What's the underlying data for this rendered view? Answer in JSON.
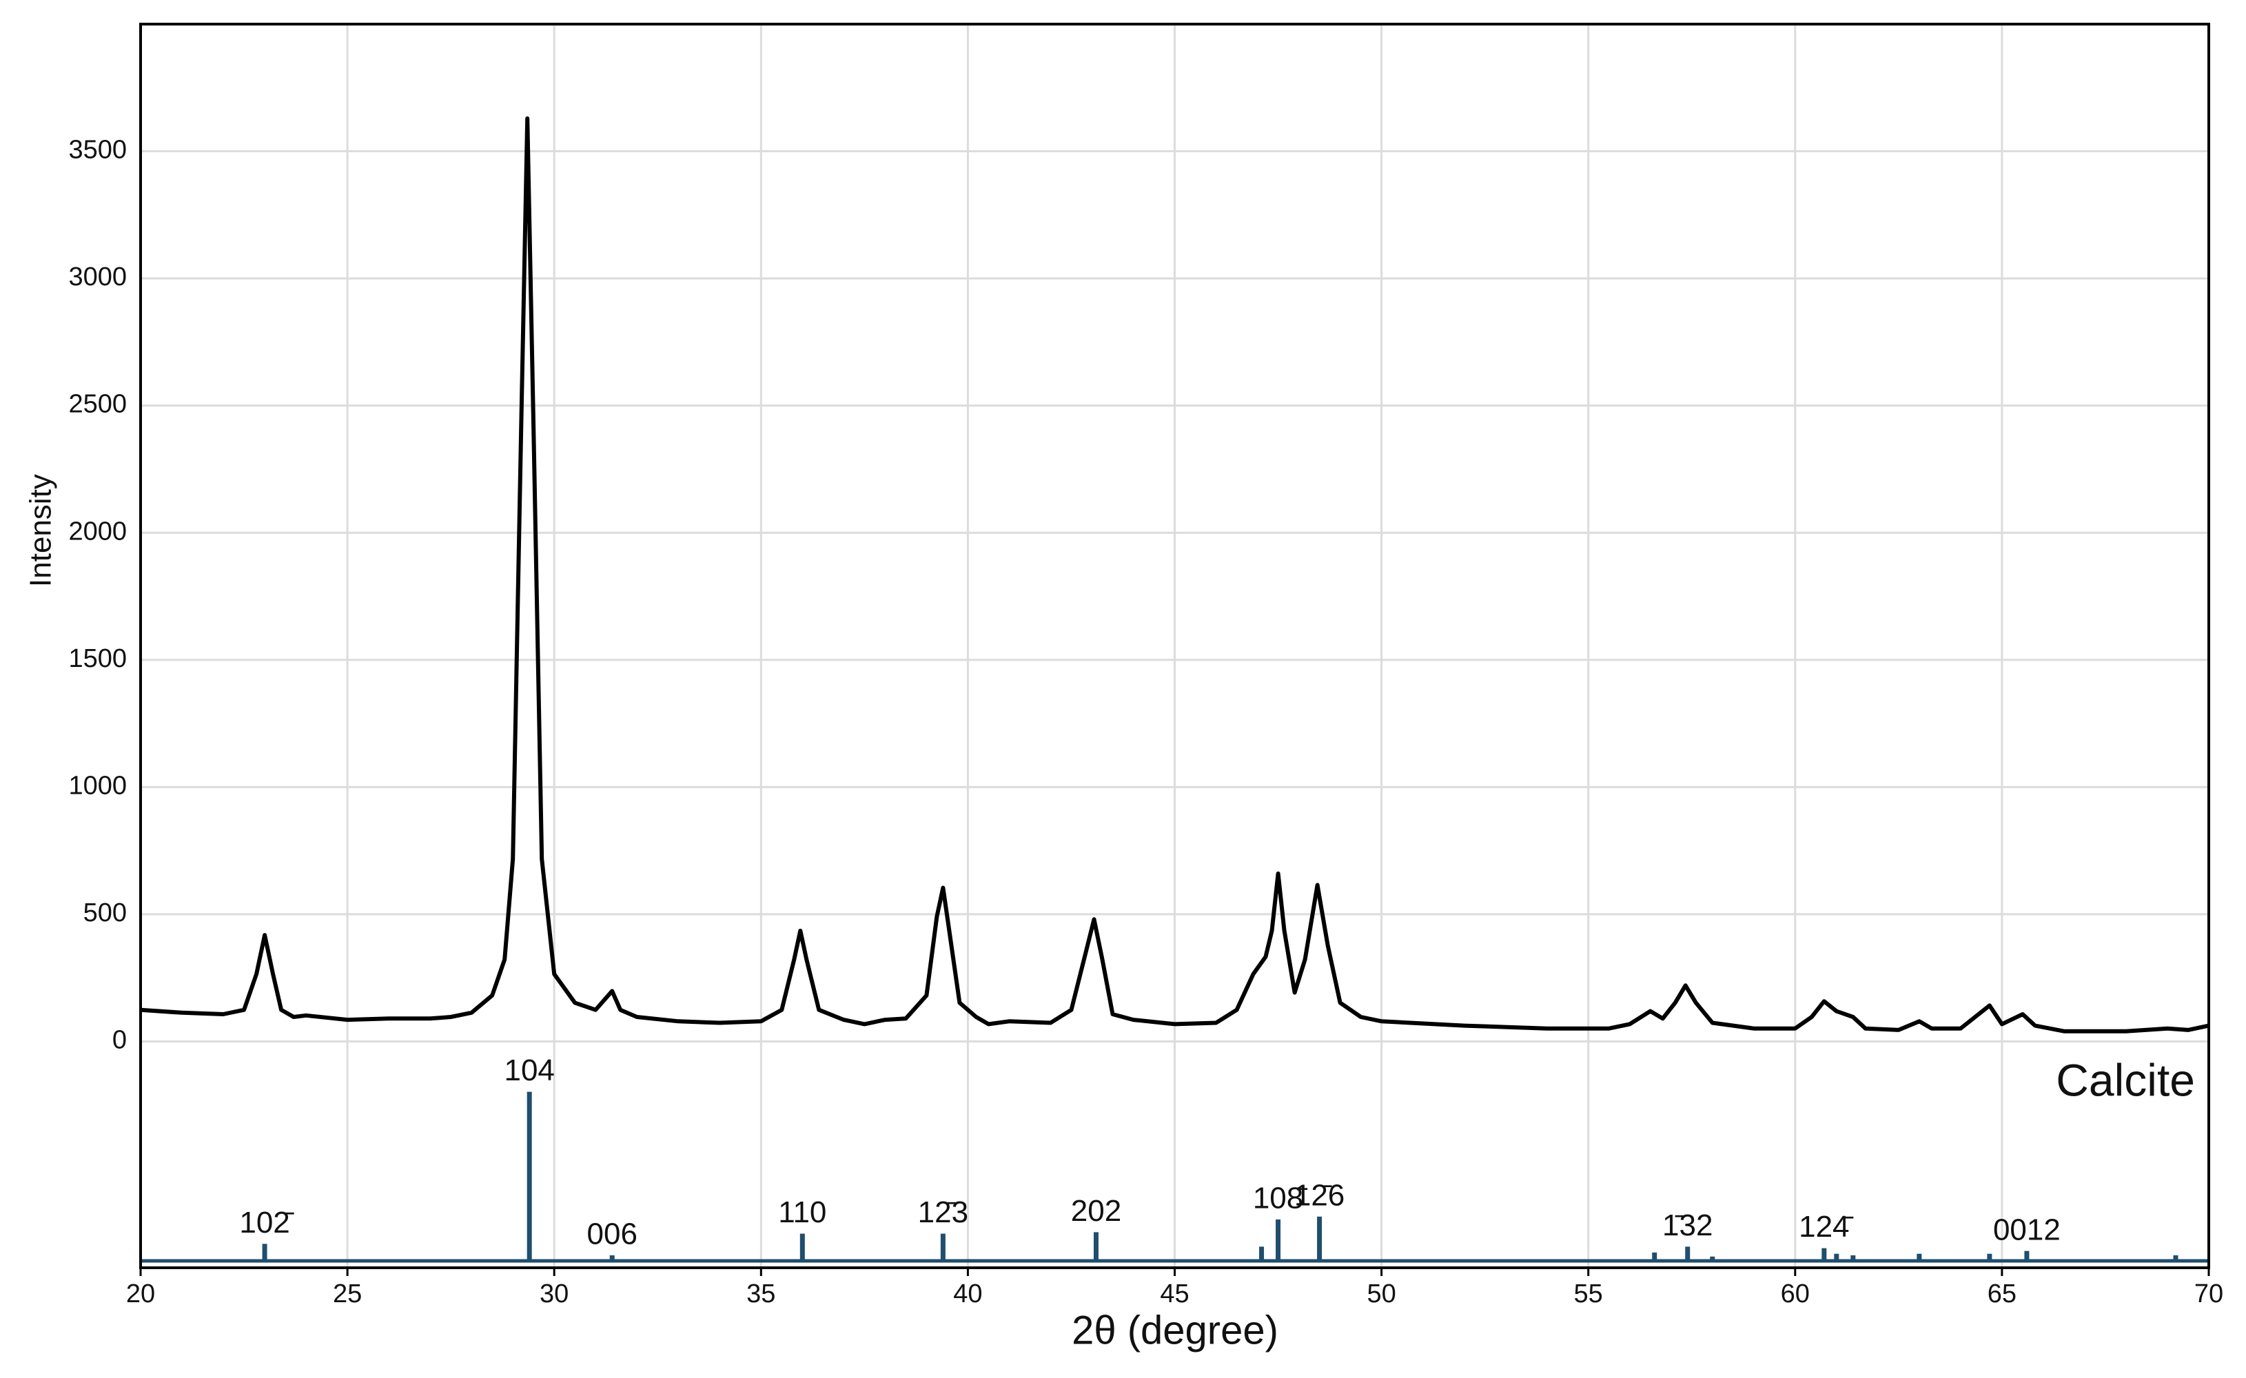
{
  "chart_data": {
    "type": "line",
    "xlabel": "2θ (degree)",
    "ylabel": "Intensity",
    "x": [
      20,
      21,
      22,
      22.5,
      22.8,
      23.0,
      23.2,
      23.4,
      23.7,
      24,
      25,
      26,
      27,
      27.5,
      28,
      28.5,
      28.8,
      29.0,
      29.2,
      29.35,
      29.5,
      29.7,
      30.0,
      30.5,
      31.0,
      31.4,
      31.6,
      32,
      33,
      34,
      35,
      35.5,
      35.8,
      35.95,
      36.1,
      36.4,
      37,
      37.5,
      38,
      38.5,
      39.0,
      39.25,
      39.4,
      39.55,
      39.8,
      40.2,
      40.5,
      41,
      42,
      42.5,
      42.85,
      43.05,
      43.25,
      43.5,
      44,
      45,
      46,
      46.5,
      46.9,
      47.2,
      47.35,
      47.5,
      47.65,
      47.9,
      48.15,
      48.45,
      48.7,
      49.0,
      49.5,
      50,
      52,
      54,
      55.5,
      56.0,
      56.5,
      56.8,
      57.1,
      57.35,
      57.6,
      58,
      59,
      60,
      60.4,
      60.7,
      61.0,
      61.4,
      61.7,
      62.5,
      63,
      63.3,
      64,
      64.7,
      65.0,
      65.5,
      65.8,
      66.5,
      68,
      69,
      69.5,
      70
    ],
    "values": [
      124,
      113,
      107,
      124,
      265,
      418,
      265,
      124,
      96,
      102,
      85,
      90,
      90,
      96,
      113,
      181,
      322,
      717,
      2410,
      3629,
      2410,
      717,
      265,
      152,
      124,
      198,
      124,
      96,
      79,
      73,
      79,
      124,
      322,
      435,
      322,
      124,
      85,
      68,
      85,
      90,
      181,
      491,
      604,
      435,
      152,
      96,
      68,
      79,
      73,
      124,
      350,
      480,
      322,
      107,
      85,
      68,
      73,
      124,
      265,
      333,
      435,
      660,
      435,
      192,
      322,
      615,
      378,
      152,
      96,
      79,
      62,
      51,
      51,
      68,
      119,
      90,
      152,
      220,
      152,
      73,
      51,
      51,
      96,
      158,
      119,
      96,
      51,
      45,
      79,
      51,
      51,
      141,
      68,
      107,
      62,
      40,
      40,
      51,
      45,
      62
    ],
    "color": "#000000",
    "xlim": [
      20,
      70
    ],
    "xticks": [
      20,
      25,
      30,
      35,
      40,
      45,
      50,
      55,
      60,
      65,
      70
    ],
    "ylim": [
      -890,
      4000
    ],
    "yticks": [
      0,
      500,
      1000,
      1500,
      2000,
      2500,
      3000,
      3500
    ],
    "grid": true,
    "reference": {
      "name": "Calcite",
      "color": "#1f4e6e",
      "x": [
        23.0,
        29.4,
        31.4,
        36.0,
        39.4,
        43.1,
        47.1,
        47.5,
        48.5,
        56.6,
        57.4,
        58.0,
        60.7,
        61.0,
        61.4,
        63.0,
        64.7,
        65.6,
        69.2
      ],
      "values": [
        -796,
        -198,
        -841,
        -756,
        -756,
        -750,
        -807,
        -700,
        -689,
        -830,
        -807,
        -846,
        -813,
        -835,
        -841,
        -835,
        -835,
        -824,
        -841
      ],
      "labels": [
        "102̄",
        "104",
        "006",
        "110",
        "12̄3",
        "202",
        null,
        "108̄",
        "12̄6",
        null,
        "1̄32",
        null,
        "124̄",
        null,
        null,
        null,
        null,
        "0012",
        null
      ]
    }
  }
}
